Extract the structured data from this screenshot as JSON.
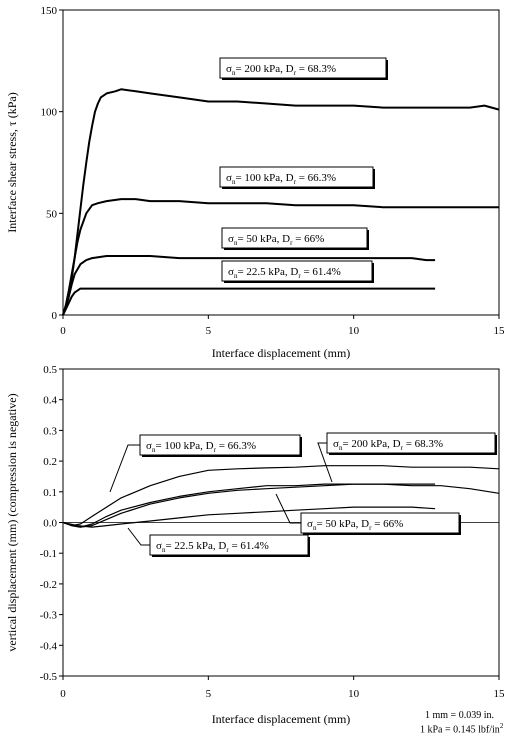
{
  "chart_data": [
    {
      "type": "line",
      "ylabel": "Interface shear stress, τ (kPa)",
      "xlabel": "Interface displacement (mm)",
      "xlim": [
        0,
        15
      ],
      "ylim": [
        0,
        150
      ],
      "xticks": [
        0,
        5,
        10,
        15
      ],
      "yticks": [
        0,
        50,
        100,
        150
      ],
      "grid": false,
      "series": [
        {
          "key": "s200",
          "label": {
            "sigma": "σ",
            "sub_n": "n",
            "mid": "= 200 kPa, D",
            "sub_r": "r",
            "end": " = 68.3%"
          },
          "x": [
            0,
            0.1,
            0.2,
            0.3,
            0.4,
            0.5,
            0.6,
            0.7,
            0.8,
            0.9,
            1.0,
            1.1,
            1.2,
            1.3,
            1.5,
            1.8,
            2.0,
            2.5,
            3.0,
            3.5,
            4.0,
            5.0,
            6.0,
            7.0,
            8.0,
            9.0,
            10.0,
            11.0,
            12.0,
            13.0,
            14.0,
            14.5,
            15.0
          ],
          "y": [
            0,
            4,
            10,
            18,
            28,
            40,
            52,
            64,
            75,
            85,
            93,
            100,
            104,
            107,
            109,
            110,
            111,
            110,
            109,
            108,
            107,
            105,
            105,
            104,
            103,
            103,
            103,
            102,
            102,
            102,
            102,
            103,
            101
          ]
        },
        {
          "key": "s100",
          "label": {
            "sigma": "σ",
            "sub_n": "n",
            "mid": "= 100 kPa, D",
            "sub_r": "r",
            "end": " = 66.3%"
          },
          "x": [
            0,
            0.1,
            0.2,
            0.3,
            0.4,
            0.5,
            0.6,
            0.8,
            1.0,
            1.2,
            1.5,
            2.0,
            2.5,
            3.0,
            4.0,
            5.0,
            6.0,
            7.0,
            8.0,
            9.0,
            10.0,
            11.0,
            12.0,
            13.0,
            14.0,
            15.0
          ],
          "y": [
            0,
            5,
            12,
            20,
            28,
            36,
            42,
            50,
            54,
            55,
            56,
            57,
            57,
            56,
            56,
            55,
            55,
            55,
            54,
            54,
            54,
            53,
            53,
            53,
            53,
            53
          ]
        },
        {
          "key": "s50",
          "label": {
            "sigma": "σ",
            "sub_n": "n",
            "mid": "= 50 kPa, D",
            "sub_r": "r",
            "end": " = 66%"
          },
          "x": [
            0,
            0.1,
            0.2,
            0.3,
            0.4,
            0.6,
            0.8,
            1.0,
            1.5,
            2.0,
            3.0,
            4.0,
            5.0,
            6.0,
            7.0,
            8.0,
            9.0,
            10.0,
            11.0,
            12.0,
            12.5,
            12.8
          ],
          "y": [
            0,
            4,
            9,
            15,
            20,
            25,
            27,
            28,
            29,
            29,
            29,
            28,
            28,
            28,
            28,
            28,
            28,
            28,
            28,
            28,
            27,
            27
          ]
        },
        {
          "key": "s22",
          "label": {
            "sigma": "σ",
            "sub_n": "n",
            "mid": "= 22.5 kPa, D",
            "sub_r": "r",
            "end": " = 61.4%"
          },
          "x": [
            0,
            0.1,
            0.2,
            0.3,
            0.4,
            0.5,
            0.6,
            0.8,
            1.0,
            2.0,
            3.0,
            4.0,
            5.0,
            6.0,
            7.0,
            8.0,
            9.0,
            10.0,
            11.0,
            12.0,
            12.8
          ],
          "y": [
            0,
            3,
            6,
            9,
            11,
            12,
            13,
            13,
            13,
            13,
            13,
            13,
            13,
            13,
            13,
            13,
            13,
            13,
            13,
            13,
            13
          ]
        }
      ]
    },
    {
      "type": "line",
      "ylabel": "vertical displacement (mm) (compression is negative)",
      "xlabel": "Interface displacement (mm)",
      "xlim": [
        0,
        15
      ],
      "ylim": [
        -0.5,
        0.5
      ],
      "xticks": [
        0,
        5,
        10,
        15
      ],
      "yticks": [
        -0.5,
        -0.4,
        -0.3,
        -0.2,
        -0.1,
        0.0,
        0.1,
        0.2,
        0.3,
        0.4,
        0.5
      ],
      "grid": false,
      "series": [
        {
          "key": "v200",
          "label": {
            "sigma": "σ",
            "sub_n": "n",
            "mid": "= 200 kPa, D",
            "sub_r": "r",
            "end": " = 68.3%"
          },
          "x": [
            0,
            0.3,
            0.6,
            1.0,
            1.5,
            2.0,
            3.0,
            4.0,
            5.0,
            6.0,
            7.0,
            8.0,
            9.0,
            10.0,
            11.0,
            12.0,
            13.0,
            14.0,
            15.0
          ],
          "y": [
            0,
            -0.01,
            -0.015,
            -0.005,
            0.02,
            0.04,
            0.065,
            0.085,
            0.1,
            0.11,
            0.12,
            0.12,
            0.125,
            0.125,
            0.125,
            0.12,
            0.12,
            0.11,
            0.095
          ]
        },
        {
          "key": "v100",
          "label": {
            "sigma": "σ",
            "sub_n": "n",
            "mid": "= 100 kPa, D",
            "sub_r": "r",
            "end": " = 66.3%"
          },
          "x": [
            0,
            0.3,
            0.6,
            1.0,
            1.5,
            2.0,
            2.5,
            3.0,
            4.0,
            5.0,
            6.0,
            7.0,
            8.0,
            9.0,
            10.0,
            11.0,
            12.0,
            13.0,
            14.0,
            15.0
          ],
          "y": [
            0,
            -0.01,
            -0.005,
            0.02,
            0.05,
            0.08,
            0.1,
            0.12,
            0.15,
            0.17,
            0.175,
            0.178,
            0.18,
            0.185,
            0.185,
            0.185,
            0.18,
            0.18,
            0.18,
            0.175
          ]
        },
        {
          "key": "v50",
          "label": {
            "sigma": "σ",
            "sub_n": "n",
            "mid": "= 50 kPa, D",
            "sub_r": "r",
            "end": " = 66%"
          },
          "x": [
            0,
            0.3,
            0.6,
            1.0,
            1.5,
            2.0,
            3.0,
            4.0,
            5.0,
            6.0,
            7.0,
            8.0,
            9.0,
            10.0,
            11.0,
            12.0,
            12.8
          ],
          "y": [
            0,
            -0.01,
            -0.015,
            -0.01,
            0.01,
            0.03,
            0.06,
            0.08,
            0.095,
            0.105,
            0.11,
            0.115,
            0.12,
            0.125,
            0.125,
            0.125,
            0.125
          ]
        },
        {
          "key": "v22",
          "label": {
            "sigma": "σ",
            "sub_n": "n",
            "mid": "= 22.5 kPa, D",
            "sub_r": "r",
            "end": " = 61.4%"
          },
          "x": [
            0,
            0.5,
            1.0,
            1.5,
            2.0,
            3.0,
            4.0,
            5.0,
            6.0,
            7.0,
            8.0,
            9.0,
            10.0,
            11.0,
            12.0,
            12.8
          ],
          "y": [
            0,
            -0.01,
            -0.015,
            -0.01,
            -0.005,
            0.005,
            0.015,
            0.025,
            0.03,
            0.035,
            0.04,
            0.045,
            0.05,
            0.05,
            0.05,
            0.045
          ]
        }
      ]
    }
  ],
  "notes": {
    "line1": "1 mm = 0.039 in.",
    "line2": "1 kPa = 0.145 lbf/in",
    "line2_sup": "2"
  }
}
